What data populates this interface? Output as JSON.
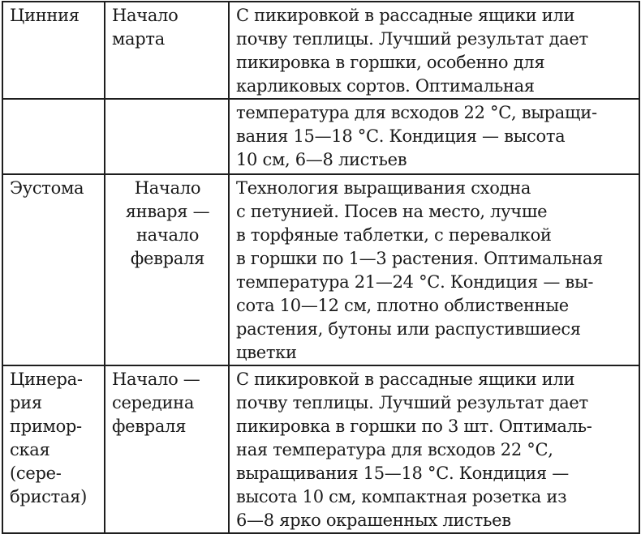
{
  "rows": [
    {
      "plant": "Цинния",
      "sowing": "Начало\nмарта",
      "notes": "С пикировкой в рассадные ящики или\nпочву теплицы. Лучший результат дает\nпикировка в горшки, особенно для\nкарликовых сортов. Оптимальная"
    },
    {
      "plant": "",
      "sowing": "",
      "notes": "температура для всходов 22 °С, выращи-\nвания 15—18 °С. Кондиция — высота\n10 см, 6—8 листьев"
    },
    {
      "plant": "Эустома",
      "sowing": "Начало\nянваря —\nначало\nфевраля",
      "notes": "Технология выращивания сходна\nс петунией. Посев на место, лучше\nв торфяные таблетки, с перевалкой\nв горшки по 1—3 растения. Оптимальная\nтемпература 21—24 °С. Кондиция — вы-\nсота 10—12 см, плотно облиственные\nрастения, бутоны или распустившиеся\nцветки"
    },
    {
      "plant": "Цинера-\nрия\nпримор-\nская\n(сере-\nбристая)",
      "sowing": "Начало —\nсередина\nфевраля",
      "notes": "С пикировкой в рассадные ящики или\nпочву теплицы. Лучший результат дает\nпикировка в горшки по 3 шт. Оптималь-\nная температура для всходов 22 °С,\nвыращивания 15—18 °С. Кондиция —\nвысота 10 см, компактная розетка из\n6—8 ярко окрашенных листьев"
    }
  ]
}
